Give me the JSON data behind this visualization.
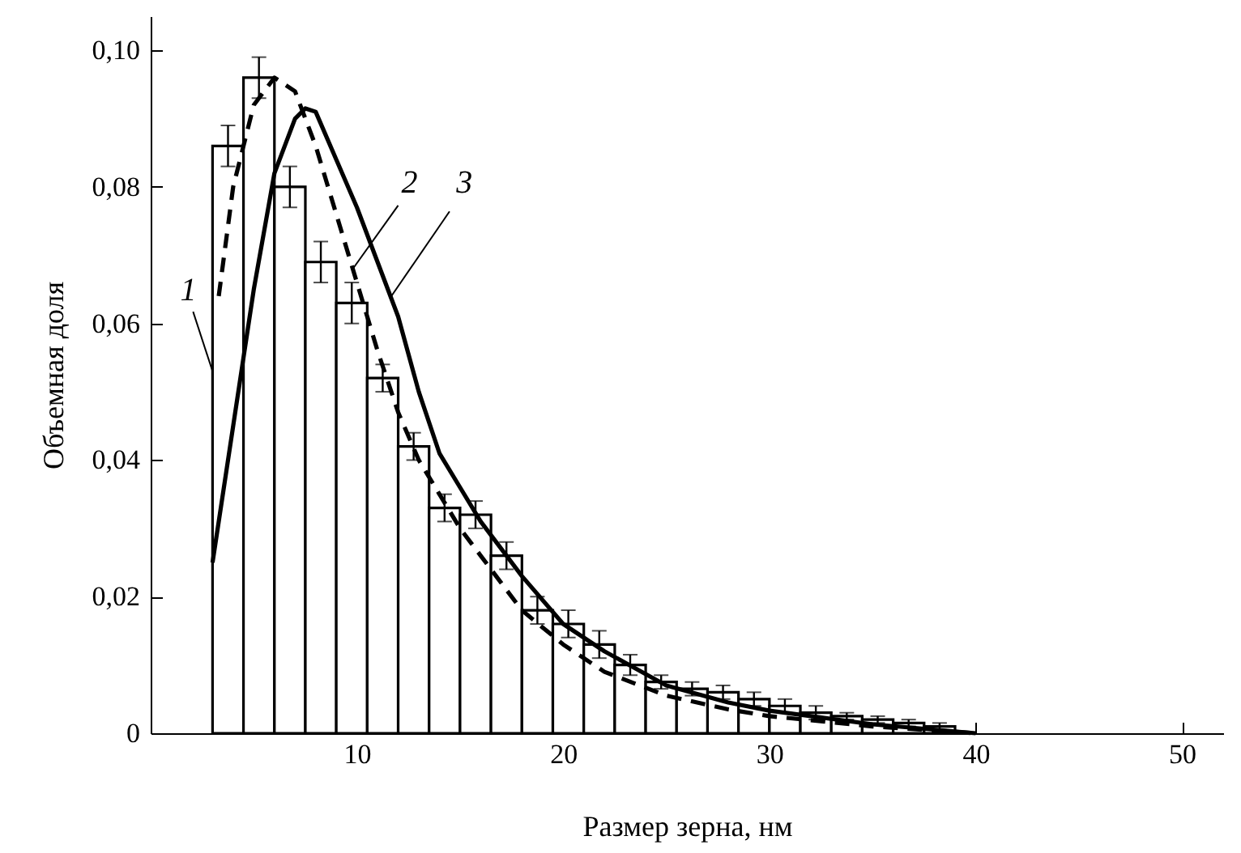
{
  "chart_data": {
    "type": "histogram",
    "xlabel": "Размер зерна,  нм",
    "ylabel": "Объемная доля",
    "xlim": [
      0,
      52
    ],
    "xticks": [
      10,
      20,
      30,
      40,
      50
    ],
    "ylim": [
      0,
      0.105
    ],
    "yticks": [
      {
        "value": 0,
        "label": "0"
      },
      {
        "value": 0.02,
        "label": "0,02"
      },
      {
        "value": 0.04,
        "label": "0,04"
      },
      {
        "value": 0.06,
        "label": "0,06"
      },
      {
        "value": 0.08,
        "label": "0,08"
      },
      {
        "value": 0.1,
        "label": "0,10"
      }
    ],
    "grid": false,
    "series": [
      {
        "color": "#000000",
        "bins": [
          3,
          4.5,
          6,
          7.5,
          9,
          10.5,
          12,
          13.5,
          15,
          16.5,
          18,
          19.5,
          21,
          22.5,
          24,
          25.5,
          27,
          28.5,
          30,
          31.5,
          33,
          34.5,
          36,
          37.5,
          39
        ],
        "values": [
          0.086,
          0.096,
          0.08,
          0.069,
          0.063,
          0.052,
          0.042,
          0.033,
          0.032,
          0.026,
          0.018,
          0.016,
          0.013,
          0.01,
          0.0075,
          0.0065,
          0.006,
          0.005,
          0.004,
          0.003,
          0.0025,
          0.002,
          0.0015,
          0.001
        ],
        "errors": [
          0.003,
          0.003,
          0.003,
          0.003,
          0.003,
          0.002,
          0.002,
          0.002,
          0.002,
          0.002,
          0.002,
          0.002,
          0.002,
          0.0015,
          0.001,
          0.001,
          0.001,
          0.001,
          0.001,
          0.001,
          0.0005,
          0.0005,
          0.0005,
          0.0005
        ]
      },
      {
        "type": "line",
        "color": "#000000",
        "line_style": "dashed",
        "x": [
          3.3,
          4,
          5,
          6,
          7,
          8,
          9,
          10,
          11,
          12,
          13,
          14,
          15,
          16,
          17,
          18,
          20,
          22,
          25,
          28,
          30,
          35,
          40
        ],
        "values": [
          0.064,
          0.08,
          0.092,
          0.096,
          0.094,
          0.086,
          0.076,
          0.066,
          0.056,
          0.047,
          0.04,
          0.035,
          0.03,
          0.026,
          0.022,
          0.018,
          0.013,
          0.009,
          0.0055,
          0.0035,
          0.0025,
          0.001,
          0
        ]
      },
      {
        "type": "line",
        "color": "#000000",
        "line_style": "solid",
        "x": [
          3,
          4,
          5,
          6,
          7,
          7.5,
          8,
          9,
          10,
          11,
          12,
          13,
          14,
          15,
          16,
          17,
          18,
          20,
          22,
          25,
          28,
          30,
          35,
          40
        ],
        "values": [
          0.025,
          0.045,
          0.065,
          0.082,
          0.09,
          0.0915,
          0.091,
          0.084,
          0.077,
          0.069,
          0.061,
          0.05,
          0.041,
          0.036,
          0.031,
          0.027,
          0.023,
          0.016,
          0.012,
          0.007,
          0.0045,
          0.0033,
          0.0013,
          0
        ]
      }
    ],
    "annotations": [
      {
        "text": "1",
        "x": 3,
        "y": 0.053
      },
      {
        "text": "2",
        "x": 9.8,
        "y": 0.068
      },
      {
        "text": "3",
        "x": 11.6,
        "y": 0.0637
      }
    ]
  }
}
